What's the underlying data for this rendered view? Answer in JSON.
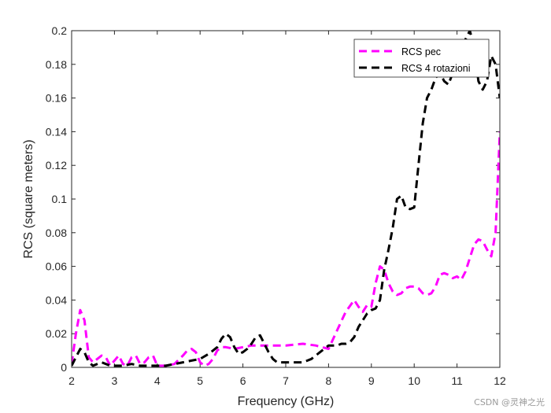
{
  "chart_data": {
    "type": "line",
    "title": "",
    "xlabel": "Frequency (GHz)",
    "ylabel": "RCS (square meters)",
    "xlim": [
      2,
      12
    ],
    "ylim": [
      0,
      0.2
    ],
    "xticks": [
      2,
      3,
      4,
      5,
      6,
      7,
      8,
      9,
      10,
      11,
      12
    ],
    "yticks": [
      0,
      0.02,
      0.04,
      0.06,
      0.08,
      0.1,
      0.12,
      0.14,
      0.16,
      0.18,
      0.2
    ],
    "xtick_labels": [
      "2",
      "3",
      "4",
      "5",
      "6",
      "7",
      "8",
      "9",
      "10",
      "11",
      "12"
    ],
    "ytick_labels": [
      "0",
      "0.02",
      "0.04",
      "0.06",
      "0.08",
      "0.1",
      "0.12",
      "0.14",
      "0.16",
      "0.18",
      "0.2"
    ],
    "legend_position": "top-right",
    "series": [
      {
        "name": "RCS pec",
        "color": "#ff00ff",
        "x": [
          2.0,
          2.1,
          2.2,
          2.3,
          2.4,
          2.5,
          2.6,
          2.7,
          2.8,
          2.9,
          3.0,
          3.1,
          3.2,
          3.3,
          3.4,
          3.5,
          3.6,
          3.7,
          3.8,
          3.9,
          4.0,
          4.2,
          4.4,
          4.6,
          4.7,
          4.8,
          4.9,
          5.0,
          5.1,
          5.2,
          5.3,
          5.4,
          5.5,
          5.6,
          5.8,
          6.0,
          6.2,
          6.5,
          7.0,
          7.4,
          7.7,
          8.0,
          8.2,
          8.4,
          8.6,
          8.7,
          8.8,
          8.9,
          9.0,
          9.1,
          9.2,
          9.3,
          9.4,
          9.5,
          9.6,
          9.7,
          9.8,
          9.9,
          10.0,
          10.1,
          10.2,
          10.3,
          10.4,
          10.5,
          10.6,
          10.7,
          10.8,
          10.9,
          11.0,
          11.1,
          11.2,
          11.3,
          11.4,
          11.5,
          11.6,
          11.7,
          11.8,
          11.9,
          12.0
        ],
        "y": [
          0.002,
          0.02,
          0.034,
          0.028,
          0.006,
          0.003,
          0.005,
          0.007,
          0.006,
          0.001,
          0.004,
          0.007,
          0.002,
          0.001,
          0.006,
          0.007,
          0.002,
          0.003,
          0.006,
          0.007,
          0.001,
          0.001,
          0.002,
          0.007,
          0.01,
          0.011,
          0.009,
          0.003,
          0.001,
          0.002,
          0.005,
          0.01,
          0.012,
          0.012,
          0.011,
          0.012,
          0.013,
          0.013,
          0.013,
          0.014,
          0.013,
          0.011,
          0.022,
          0.033,
          0.04,
          0.036,
          0.033,
          0.037,
          0.036,
          0.05,
          0.06,
          0.058,
          0.05,
          0.045,
          0.043,
          0.044,
          0.047,
          0.048,
          0.048,
          0.047,
          0.044,
          0.043,
          0.044,
          0.048,
          0.055,
          0.056,
          0.055,
          0.053,
          0.054,
          0.052,
          0.057,
          0.065,
          0.073,
          0.076,
          0.075,
          0.07,
          0.066,
          0.08,
          0.14
        ]
      },
      {
        "name": "RCS 4 rotazioni",
        "color": "#000000",
        "x": [
          2.0,
          2.1,
          2.2,
          2.3,
          2.4,
          2.5,
          2.6,
          2.7,
          2.8,
          2.9,
          3.0,
          3.2,
          3.4,
          3.6,
          3.8,
          4.0,
          4.2,
          4.4,
          4.6,
          4.8,
          5.0,
          5.2,
          5.4,
          5.5,
          5.6,
          5.7,
          5.8,
          5.9,
          6.0,
          6.1,
          6.2,
          6.3,
          6.4,
          6.5,
          6.6,
          6.7,
          6.8,
          7.0,
          7.2,
          7.4,
          7.6,
          7.8,
          8.0,
          8.2,
          8.3,
          8.4,
          8.5,
          8.6,
          8.7,
          8.8,
          8.9,
          9.0,
          9.1,
          9.2,
          9.3,
          9.4,
          9.5,
          9.6,
          9.7,
          9.8,
          9.9,
          10.0,
          10.1,
          10.2,
          10.3,
          10.4,
          10.5,
          10.6,
          10.7,
          10.8,
          10.9,
          11.0,
          11.1,
          11.2,
          11.3,
          11.4,
          11.5,
          11.6,
          11.7,
          11.8,
          11.9,
          12.0
        ],
        "y": [
          0.001,
          0.006,
          0.011,
          0.009,
          0.003,
          0.001,
          0.002,
          0.003,
          0.002,
          0.001,
          0.001,
          0.001,
          0.002,
          0.001,
          0.001,
          0.001,
          0.001,
          0.002,
          0.003,
          0.004,
          0.005,
          0.008,
          0.012,
          0.017,
          0.02,
          0.018,
          0.012,
          0.008,
          0.009,
          0.011,
          0.014,
          0.018,
          0.019,
          0.014,
          0.009,
          0.005,
          0.003,
          0.003,
          0.003,
          0.003,
          0.005,
          0.009,
          0.013,
          0.013,
          0.014,
          0.014,
          0.015,
          0.018,
          0.024,
          0.028,
          0.032,
          0.034,
          0.035,
          0.04,
          0.058,
          0.07,
          0.083,
          0.1,
          0.102,
          0.095,
          0.094,
          0.095,
          0.12,
          0.145,
          0.16,
          0.165,
          0.172,
          0.175,
          0.17,
          0.168,
          0.175,
          0.182,
          0.19,
          0.195,
          0.2,
          0.19,
          0.17,
          0.165,
          0.17,
          0.185,
          0.18,
          0.16
        ]
      }
    ]
  },
  "watermark": "CSDN @灵神之光"
}
